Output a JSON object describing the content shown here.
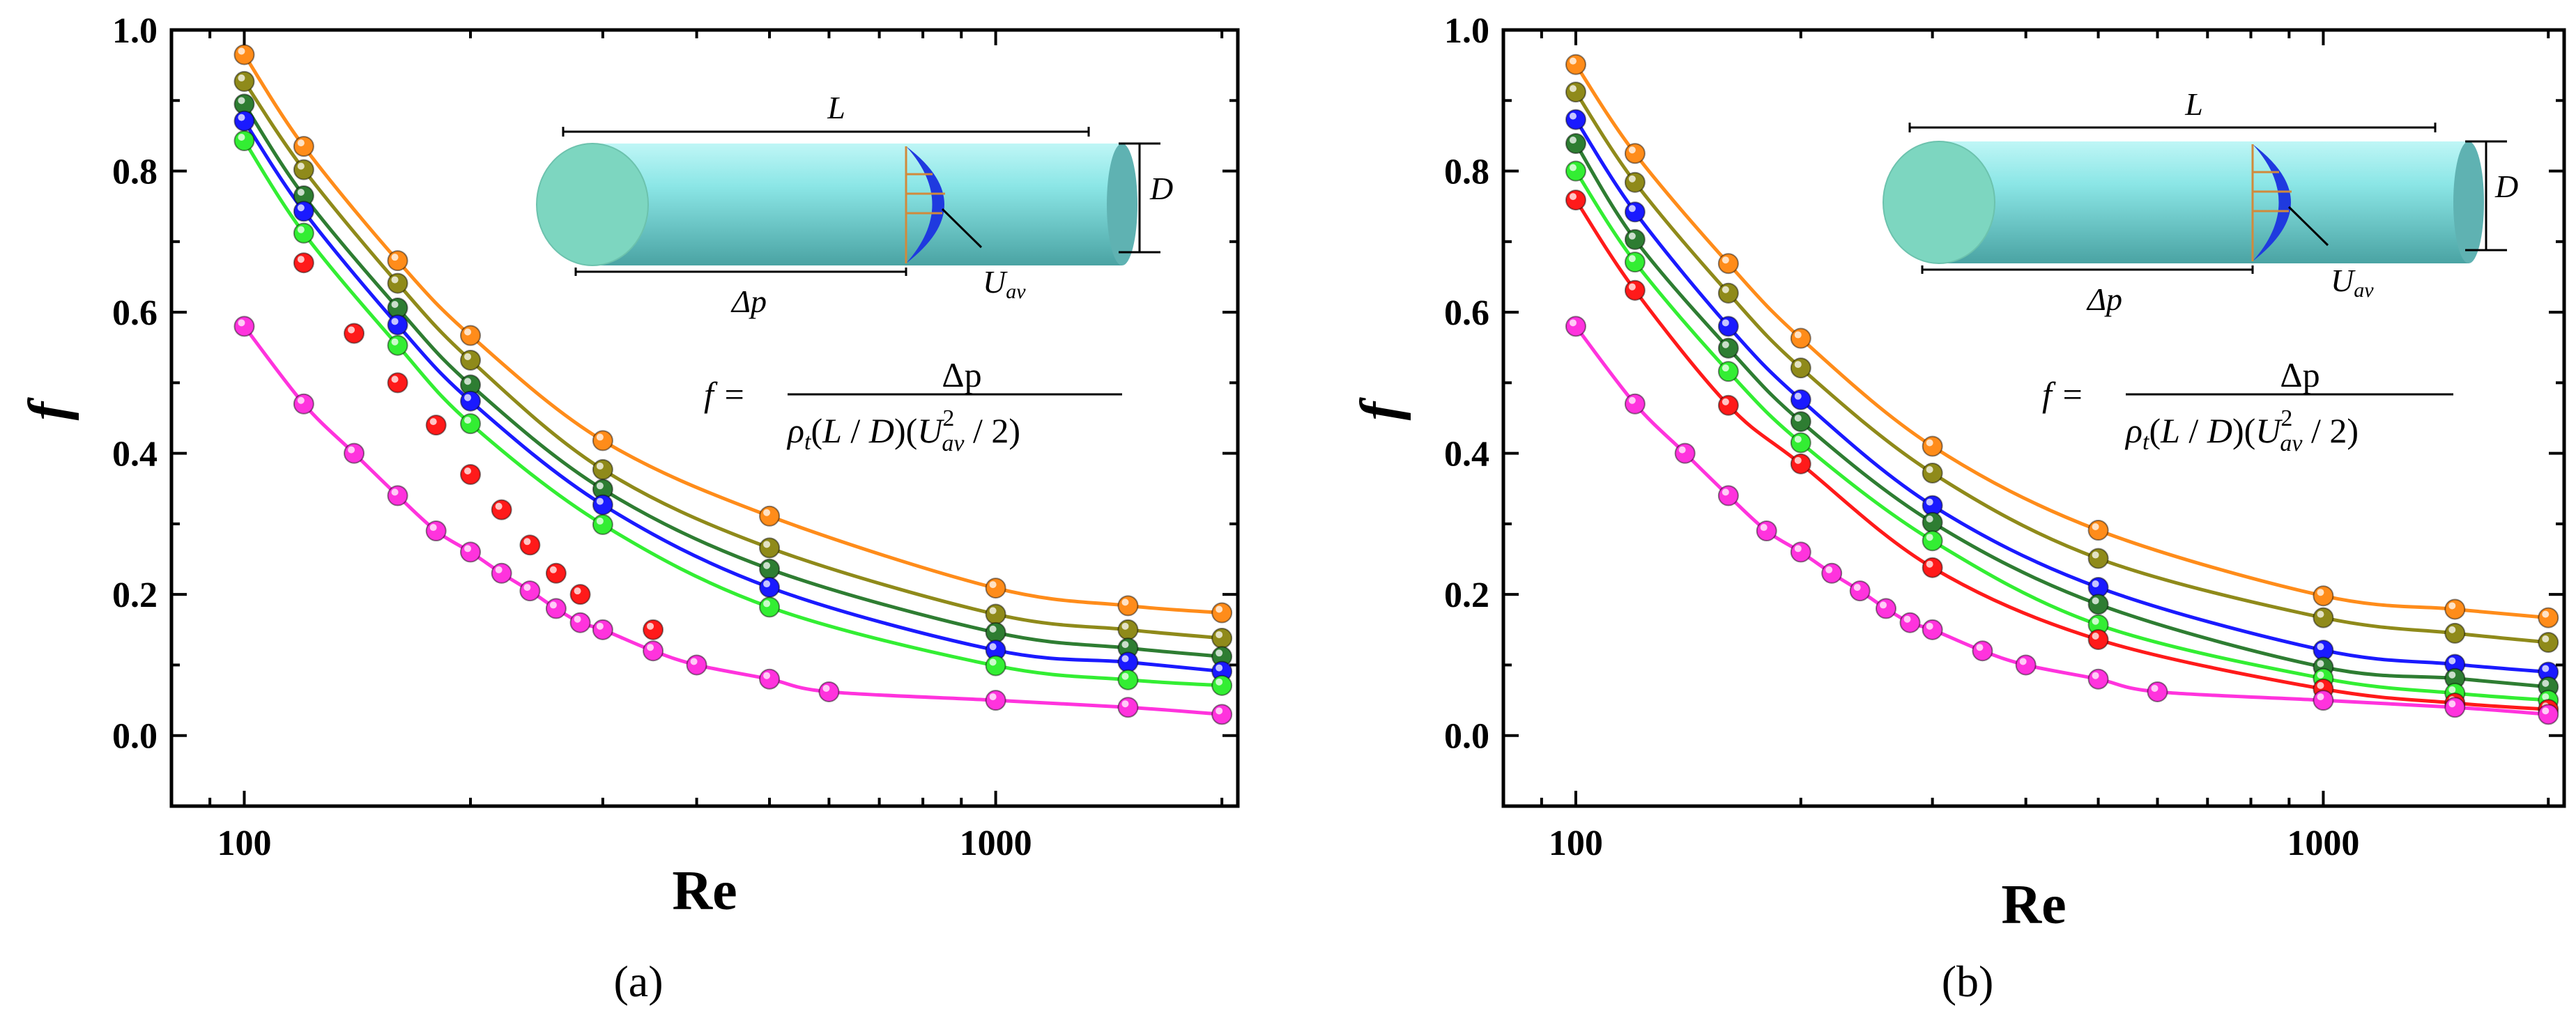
{
  "panels": [
    {
      "label": "(a)",
      "inset": {
        "length": "L",
        "diameter": "D",
        "pressure_drop": "Δp",
        "velocity": "U_av"
      },
      "equation": {
        "lhs": "f =",
        "numerator": "Δp",
        "denominator": "ρ_t(L / D)(U_av² / 2)"
      }
    },
    {
      "label": "(b)",
      "inset": {
        "length": "L",
        "diameter": "D",
        "pressure_drop": "Δp",
        "velocity": "U_av"
      },
      "equation": {
        "lhs": "f =",
        "numerator": "Δp",
        "denominator": "ρ_t(L / D)(U_av² / 2)"
      }
    }
  ],
  "chart_data": [
    {
      "type": "scatter",
      "title": "",
      "xlabel": "Re",
      "ylabel": "f",
      "xscale": "log",
      "xlim": [
        80,
        2100
      ],
      "ylim": [
        -0.1,
        1.0
      ],
      "xticks": [
        "100",
        "1000"
      ],
      "yticks": [
        "0.0",
        "0.2",
        "0.4",
        "0.6",
        "0.8",
        "1.0"
      ],
      "series": [
        {
          "color": "#ff8c1a",
          "line": true,
          "x": [
            100,
            120,
            160,
            200,
            300,
            500,
            1000,
            1500,
            2000
          ],
          "y": [
            0.965,
            0.835,
            0.673,
            0.567,
            0.418,
            0.311,
            0.209,
            0.184,
            0.174
          ]
        },
        {
          "color": "#8f8a1a",
          "line": true,
          "x": [
            100,
            120,
            160,
            200,
            300,
            500,
            1000,
            1500,
            2000
          ],
          "y": [
            0.927,
            0.802,
            0.641,
            0.532,
            0.377,
            0.266,
            0.172,
            0.15,
            0.138
          ]
        },
        {
          "color": "#2e7d32",
          "line": true,
          "x": [
            100,
            120,
            160,
            200,
            300,
            500,
            1000,
            1500,
            2000
          ],
          "y": [
            0.895,
            0.765,
            0.606,
            0.497,
            0.349,
            0.236,
            0.146,
            0.124,
            0.112
          ]
        },
        {
          "color": "#1a1aff",
          "line": true,
          "x": [
            100,
            120,
            160,
            200,
            300,
            500,
            1000,
            1500,
            2000
          ],
          "y": [
            0.871,
            0.743,
            0.582,
            0.474,
            0.327,
            0.21,
            0.121,
            0.104,
            0.091
          ]
        },
        {
          "color": "#33ee33",
          "line": true,
          "x": [
            100,
            120,
            160,
            200,
            300,
            500,
            1000,
            1500,
            2000
          ],
          "y": [
            0.843,
            0.712,
            0.553,
            0.442,
            0.299,
            0.182,
            0.099,
            0.079,
            0.071
          ]
        },
        {
          "color": "#ff1a1a",
          "line": false,
          "x": [
            120,
            140,
            160,
            180,
            200,
            220,
            240,
            260,
            280,
            350
          ],
          "y": [
            0.67,
            0.57,
            0.5,
            0.44,
            0.37,
            0.32,
            0.27,
            0.23,
            0.2,
            0.15
          ]
        },
        {
          "color": "#ff33dd",
          "line": true,
          "x": [
            100,
            120,
            140,
            160,
            180,
            200,
            220,
            240,
            260,
            280,
            300,
            350,
            400,
            500,
            600,
            1000,
            1500,
            2000
          ],
          "y": [
            0.58,
            0.47,
            0.4,
            0.34,
            0.29,
            0.26,
            0.23,
            0.205,
            0.18,
            0.16,
            0.15,
            0.12,
            0.1,
            0.08,
            0.062,
            0.05,
            0.04,
            0.03
          ]
        }
      ]
    },
    {
      "type": "scatter",
      "title": "",
      "xlabel": "Re",
      "ylabel": "f",
      "xscale": "log",
      "xlim": [
        80,
        2100
      ],
      "ylim": [
        -0.1,
        1.0
      ],
      "xticks": [
        "100",
        "1000"
      ],
      "yticks": [
        "0.0",
        "0.2",
        "0.4",
        "0.6",
        "0.8",
        "1.0"
      ],
      "series": [
        {
          "color": "#ff8c1a",
          "line": true,
          "x": [
            100,
            120,
            160,
            200,
            300,
            500,
            1000,
            1500,
            2000
          ],
          "y": [
            0.951,
            0.825,
            0.669,
            0.563,
            0.41,
            0.291,
            0.198,
            0.179,
            0.167
          ]
        },
        {
          "color": "#8f8a1a",
          "line": true,
          "x": [
            100,
            120,
            160,
            200,
            300,
            500,
            1000,
            1500,
            2000
          ],
          "y": [
            0.912,
            0.784,
            0.627,
            0.521,
            0.372,
            0.251,
            0.167,
            0.145,
            0.132
          ]
        },
        {
          "color": "#1a1aff",
          "line": true,
          "x": [
            100,
            120,
            160,
            200,
            300,
            500,
            1000,
            1500,
            2000
          ],
          "y": [
            0.873,
            0.742,
            0.58,
            0.476,
            0.326,
            0.21,
            0.121,
            0.101,
            0.09
          ]
        },
        {
          "color": "#2e7d32",
          "line": true,
          "x": [
            100,
            120,
            160,
            200,
            300,
            500,
            1000,
            1500,
            2000
          ],
          "y": [
            0.839,
            0.703,
            0.549,
            0.445,
            0.302,
            0.186,
            0.097,
            0.081,
            0.069
          ]
        },
        {
          "color": "#33ee33",
          "line": true,
          "x": [
            100,
            120,
            160,
            200,
            300,
            500,
            1000,
            1500,
            2000
          ],
          "y": [
            0.8,
            0.671,
            0.516,
            0.415,
            0.276,
            0.157,
            0.081,
            0.06,
            0.05
          ]
        },
        {
          "color": "#ff1a1a",
          "line": true,
          "x": [
            100,
            120,
            160,
            200,
            300,
            500,
            1000,
            1500,
            2000
          ],
          "y": [
            0.759,
            0.631,
            0.468,
            0.385,
            0.238,
            0.136,
            0.066,
            0.046,
            0.037
          ]
        },
        {
          "color": "#ff33dd",
          "line": true,
          "x": [
            100,
            120,
            140,
            160,
            180,
            200,
            220,
            240,
            260,
            280,
            300,
            350,
            400,
            500,
            600,
            1000,
            1500,
            2000
          ],
          "y": [
            0.58,
            0.47,
            0.4,
            0.34,
            0.29,
            0.26,
            0.23,
            0.205,
            0.18,
            0.16,
            0.15,
            0.12,
            0.1,
            0.08,
            0.062,
            0.05,
            0.04,
            0.03
          ]
        }
      ]
    }
  ]
}
